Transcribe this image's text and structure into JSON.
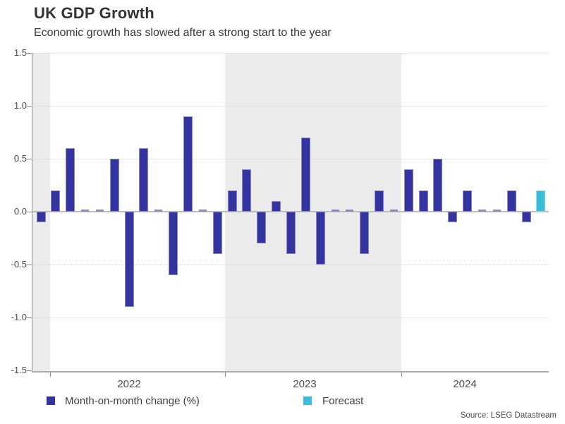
{
  "chart_data": {
    "type": "bar",
    "title": "UK GDP Growth",
    "subtitle": "Economic growth has slowed after a strong start to the year",
    "source": "Source: LSEG Datastream",
    "legend": {
      "actual_label": "Month-on-month change (%)",
      "forecast_label": "Forecast"
    },
    "y_axis": {
      "label": "",
      "min": -1.5,
      "max": 1.5,
      "tick_step": 0.5,
      "ticks": [
        "1.5",
        "1.0",
        "0.5",
        "0.0",
        "-0.5",
        "-1.0",
        "-1.5"
      ]
    },
    "x_axis": {
      "year_labels": [
        "2022",
        "2023",
        "2024"
      ]
    },
    "values": [
      -0.1,
      0.2,
      0.6,
      0.0,
      0.0,
      0.5,
      -0.9,
      0.6,
      0.0,
      -0.6,
      0.9,
      0.0,
      -0.4,
      0.2,
      0.4,
      -0.3,
      0.1,
      -0.4,
      0.7,
      -0.5,
      0.0,
      0.0,
      -0.4,
      0.2,
      0.0,
      0.4,
      0.2,
      0.5,
      -0.1,
      0.2,
      0.0,
      0.0,
      0.2,
      -0.1,
      0.2
    ],
    "forecast_index": 34,
    "grid": true,
    "legend_position": "bottom",
    "colors": {
      "actual": "#3434a0",
      "actual_border": "#8a8ac8",
      "forecast": "#3bbcd9",
      "forecast_border": "#8fd8e8",
      "zero_dash": "#8c8ccd",
      "year_band": "#ececec",
      "zero_line": "#bdbdbd"
    }
  }
}
